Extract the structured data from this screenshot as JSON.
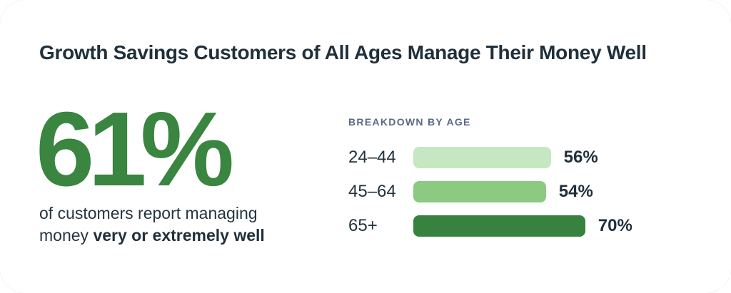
{
  "card": {
    "title": "Growth Savings Customers of All Ages Manage Their Money Well"
  },
  "stat": {
    "value": "61%",
    "caption_line1": "of customers report managing",
    "caption_line2_regular": "money",
    "caption_line2_bold": "very or extremely well"
  },
  "chart_data": {
    "type": "bar",
    "orientation": "horizontal",
    "title": "BREAKDOWN BY AGE",
    "categories": [
      "24–44",
      "45–64",
      "65+"
    ],
    "values": [
      56,
      54,
      70
    ],
    "value_labels": [
      "56%",
      "54%",
      "70%"
    ],
    "unit": "%",
    "bar_colors": [
      "#C5E7C1",
      "#8CC981",
      "#37823E"
    ],
    "xlim": [
      0,
      100
    ],
    "grid": false,
    "legend": false,
    "value_label_position": "right-of-bar"
  },
  "colors": {
    "accent_green": "#3A8540",
    "bar_light_green": "#C5E7C1",
    "bar_medium_green": "#8CC981",
    "bar_dark_green": "#37823E",
    "heading_text": "#20303B",
    "body_text": "#25343F",
    "section_label_text": "#5A6A82",
    "card_background": "#FFFFFF"
  }
}
